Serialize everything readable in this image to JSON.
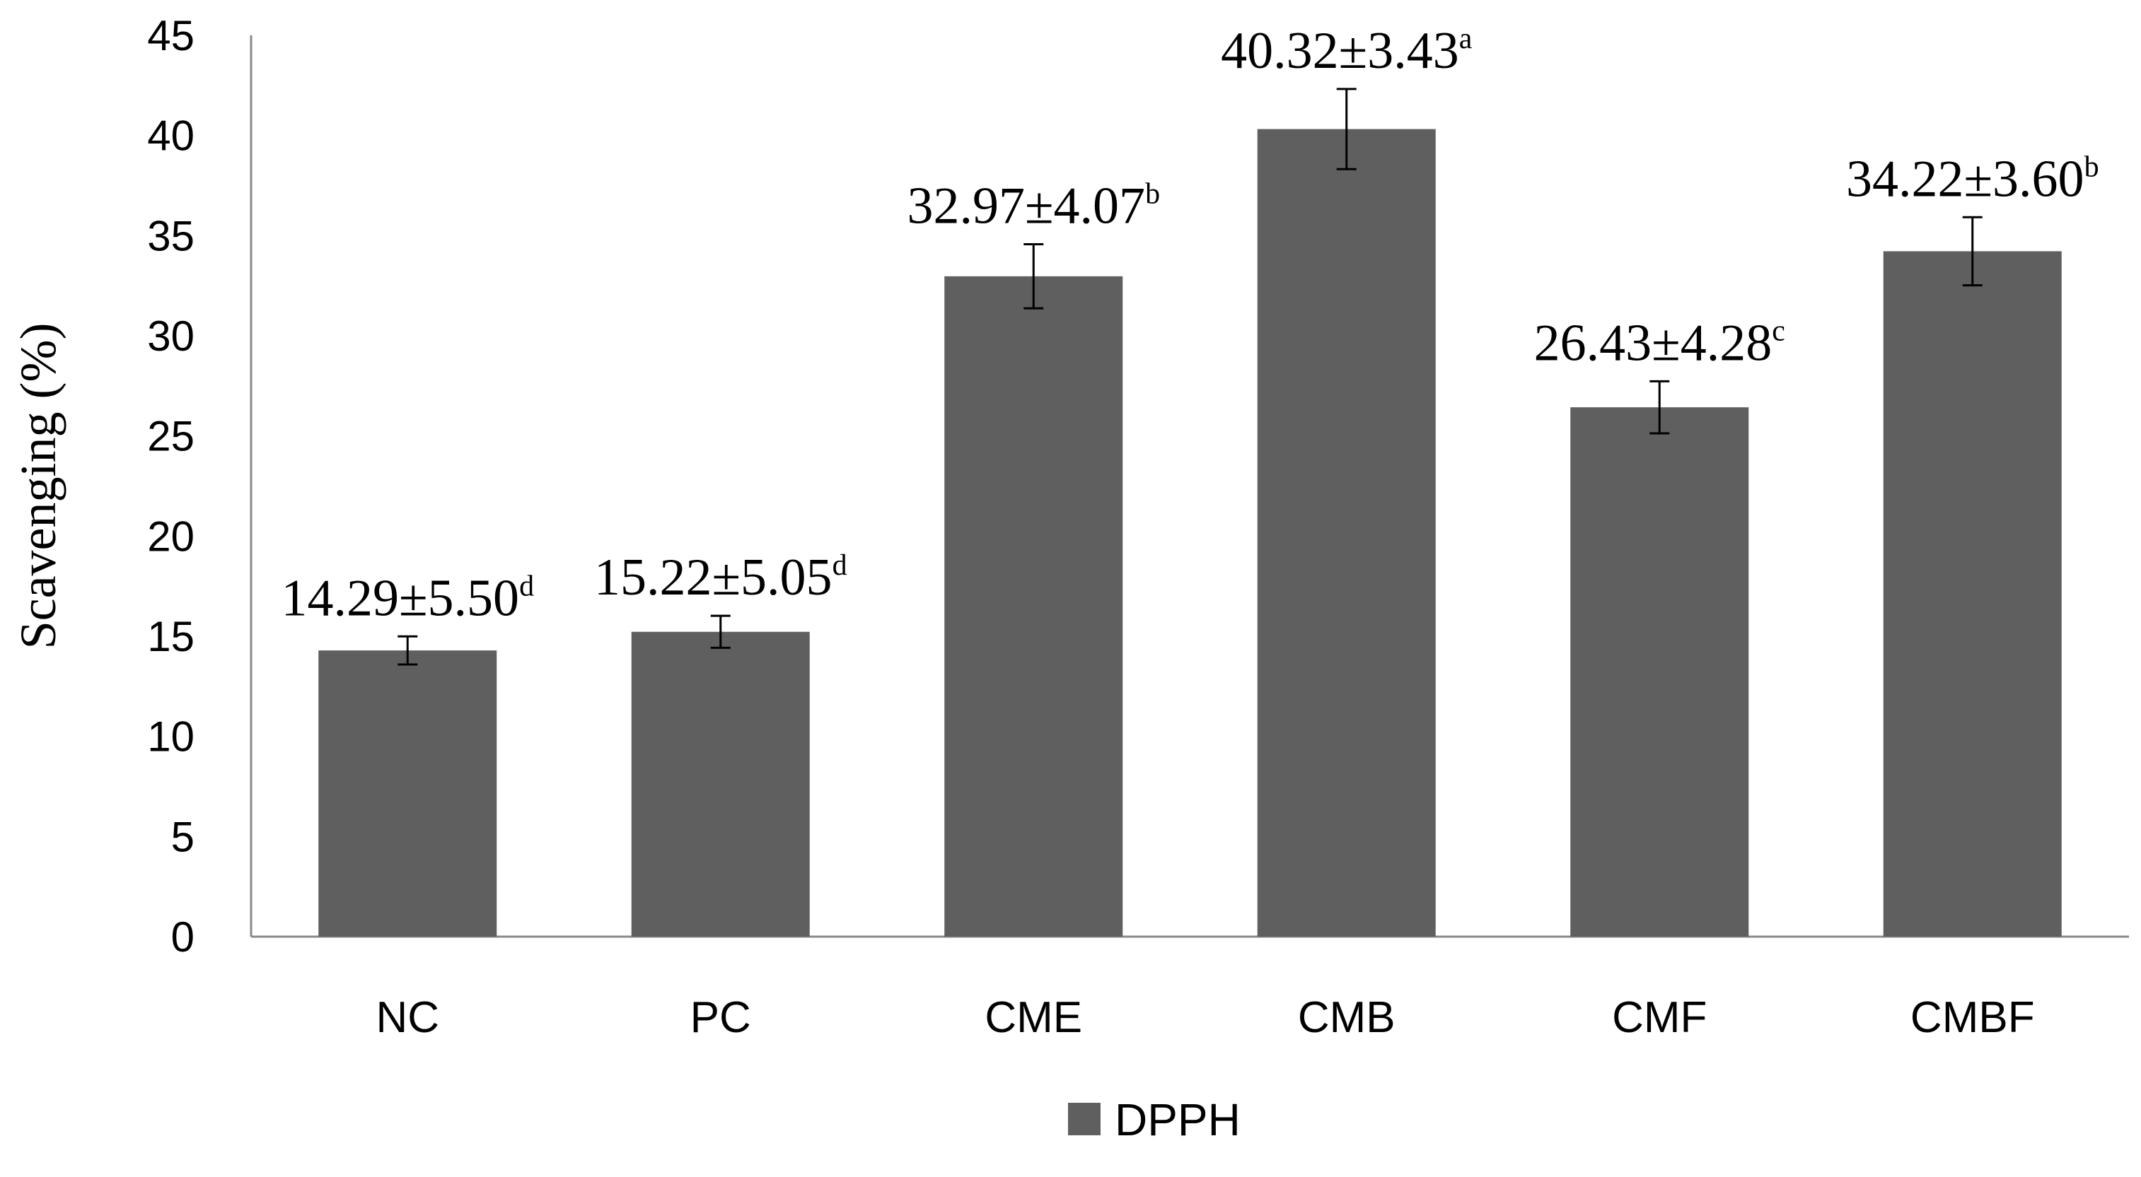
{
  "chart_data": {
    "type": "bar",
    "title": "",
    "xlabel": "",
    "ylabel": "Scavenging (%)",
    "ylim": [
      0,
      45
    ],
    "yticks": [
      0,
      5,
      10,
      15,
      20,
      25,
      30,
      35,
      40,
      45
    ],
    "grid": false,
    "categories": [
      "NC",
      "PC",
      "CME",
      "CMB",
      "CMF",
      "CMBF"
    ],
    "series": [
      {
        "name": "DPPH",
        "color": "#5f5f5f",
        "values": [
          14.29,
          15.22,
          32.97,
          40.32,
          26.43,
          34.22
        ],
        "errors": [
          0.7,
          0.8,
          1.6,
          2.0,
          1.3,
          1.7
        ],
        "labels": [
          {
            "text": "14.29±5.50",
            "sup": "d"
          },
          {
            "text": "15.22±5.05",
            "sup": "d"
          },
          {
            "text": "32.97±4.07",
            "sup": "b"
          },
          {
            "text": "40.32±3.43",
            "sup": "a"
          },
          {
            "text": "26.43±4.28",
            "sup": "c"
          },
          {
            "text": "34.22±3.60",
            "sup": "b"
          }
        ]
      }
    ],
    "legend": {
      "position": "bottom",
      "entries": [
        "DPPH"
      ]
    }
  }
}
